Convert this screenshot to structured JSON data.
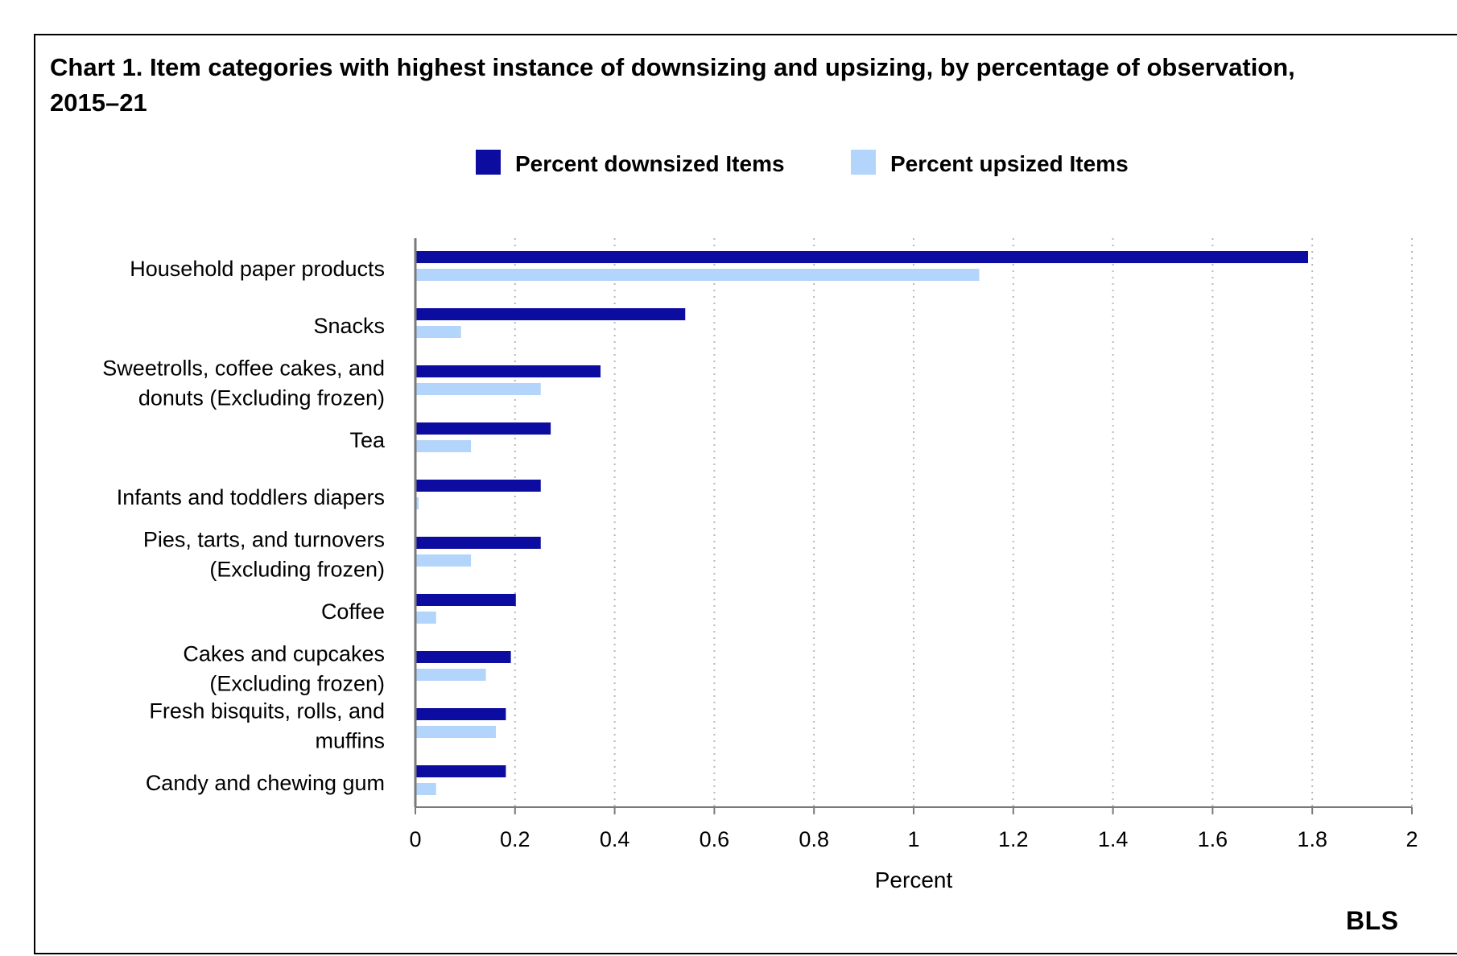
{
  "chart_data": {
    "type": "bar",
    "orientation": "horizontal",
    "title": "Chart 1. Item categories with highest instance of downsizing and upsizing, by percentage of observation, 2015–21",
    "xlabel": "Percent",
    "ylabel": "",
    "xlim": [
      0,
      2
    ],
    "x_ticks": [
      "0",
      "0.2",
      "0.4",
      "0.6",
      "0.8",
      "1",
      "1.2",
      "1.4",
      "1.6",
      "1.8",
      "2"
    ],
    "x_tick_values": [
      0,
      0.2,
      0.4,
      0.6,
      0.8,
      1,
      1.2,
      1.4,
      1.6,
      1.8,
      2
    ],
    "grid": "vertical dotted",
    "legend_position": "top-center",
    "categories": [
      "Household paper products",
      "Snacks",
      "Sweetrolls, coffee cakes, and donuts (Excluding frozen)",
      "Tea",
      "Infants and toddlers diapers",
      "Pies, tarts, and turnovers (Excluding frozen)",
      "Coffee",
      "Cakes and cupcakes (Excluding frozen)",
      "Fresh bisquits, rolls, and muffins",
      "Candy and chewing gum"
    ],
    "category_label_lines": [
      [
        "Household paper products"
      ],
      [
        "Snacks"
      ],
      [
        "Sweetrolls, coffee cakes, and",
        "donuts (Excluding frozen)"
      ],
      [
        "Tea"
      ],
      [
        "Infants and toddlers diapers"
      ],
      [
        "Pies, tarts, and turnovers",
        "(Excluding frozen)"
      ],
      [
        "Coffee"
      ],
      [
        "Cakes and cupcakes",
        "(Excluding frozen)"
      ],
      [
        "Fresh bisquits, rolls, and",
        "muffins"
      ],
      [
        "Candy and chewing gum"
      ]
    ],
    "series": [
      {
        "name": "Percent downsized Items",
        "color": "#0c0ca0",
        "values": [
          1.79,
          0.54,
          0.37,
          0.27,
          0.25,
          0.25,
          0.2,
          0.19,
          0.18,
          0.18
        ]
      },
      {
        "name": "Percent upsized Items",
        "color": "#b3d4fb",
        "values": [
          1.13,
          0.09,
          0.25,
          0.11,
          0.005,
          0.11,
          0.04,
          0.14,
          0.16,
          0.04
        ]
      }
    ]
  },
  "source_logo": "BLS"
}
